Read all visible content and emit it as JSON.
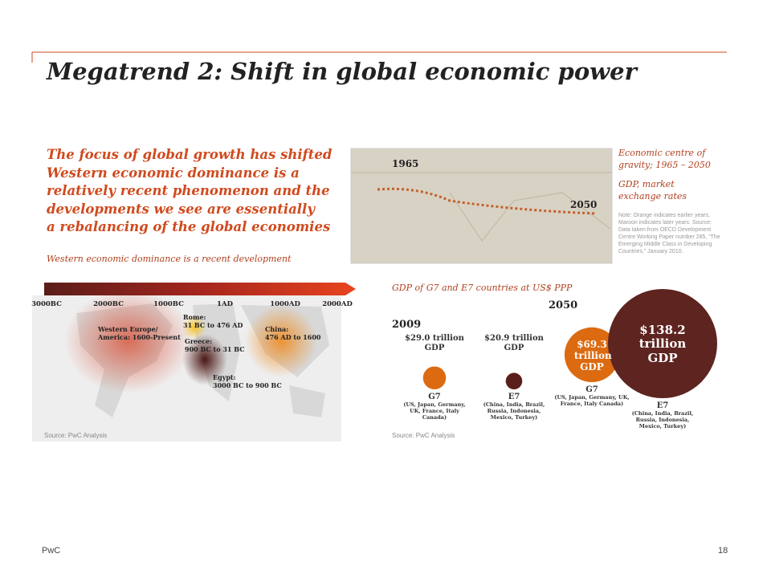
{
  "title": "Megatrend 2: Shift in global economic power",
  "headline": [
    "The focus of global growth has shifted",
    "Western economic dominance is a",
    "relatively recent phenomenon and the",
    "developments we see are essentially",
    "a rebalancing of the global economies"
  ],
  "history": {
    "subtitle": "Western economic dominance is a recent development",
    "timeline": [
      "3000BC",
      "2000BC",
      "1000BC",
      "1AD",
      "1000AD",
      "2000AD"
    ],
    "regions": [
      [
        "Western Europe/",
        "America: 1600-Present"
      ],
      [
        "Rome:",
        "31 BC to 476 AD"
      ],
      [
        "Greece:",
        "900 BC to 31 BC"
      ],
      [
        "China:",
        "476 AD to 1600"
      ],
      [
        "Egypt:",
        "3000 BC to 900 BC"
      ]
    ],
    "source": "Source: PwC Analysis"
  },
  "gravity": {
    "start": "1965",
    "end": "2050",
    "caption": "Economic centre of gravity; 1965 – 2050",
    "basis": "GDP, market exchange rates",
    "note": "Note: Orange indicates earlier years, Maroon indicates later years. Source: Data taken from OECD Development Centre Working Paper number 285, “The Emerging Middle Class in Developing Countries,” January 2010."
  },
  "gdp": {
    "title": "GDP of G7 and E7 countries at US$ PPP",
    "source": "Source: PwC Analysis",
    "periods": [
      {
        "year": "2009",
        "items": [
          {
            "value": 29.0,
            "value_label": "$29.0 trillion",
            "unit": "GDP",
            "group": "G7",
            "members": "(US, Japan, Germany, UK, France, Italy Canada)",
            "color": "#dc6a10"
          },
          {
            "value": 20.9,
            "value_label": "$20.9 trillion",
            "unit": "GDP",
            "group": "E7",
            "members": "(China, India, Brazil, Russia, Indonesia, Mexico, Turkey)",
            "color": "#5a1f1b"
          }
        ]
      },
      {
        "year": "2050",
        "items": [
          {
            "value": 69.3,
            "value_label": "$69.3 trillion",
            "unit": "GDP",
            "group": "G7",
            "members": "(US, Japan, Germany, UK, France, Italy Canada)",
            "color": "#dc6a10"
          },
          {
            "value": 138.2,
            "value_label": "$138.2 trillion",
            "unit": "GDP",
            "group": "E7",
            "members": "(China, India, Brazil, Russia, Indonesia, Mexico, Turkey)",
            "color": "#5e2420"
          }
        ]
      }
    ]
  },
  "footer": {
    "brand": "PwC",
    "page": "18"
  }
}
